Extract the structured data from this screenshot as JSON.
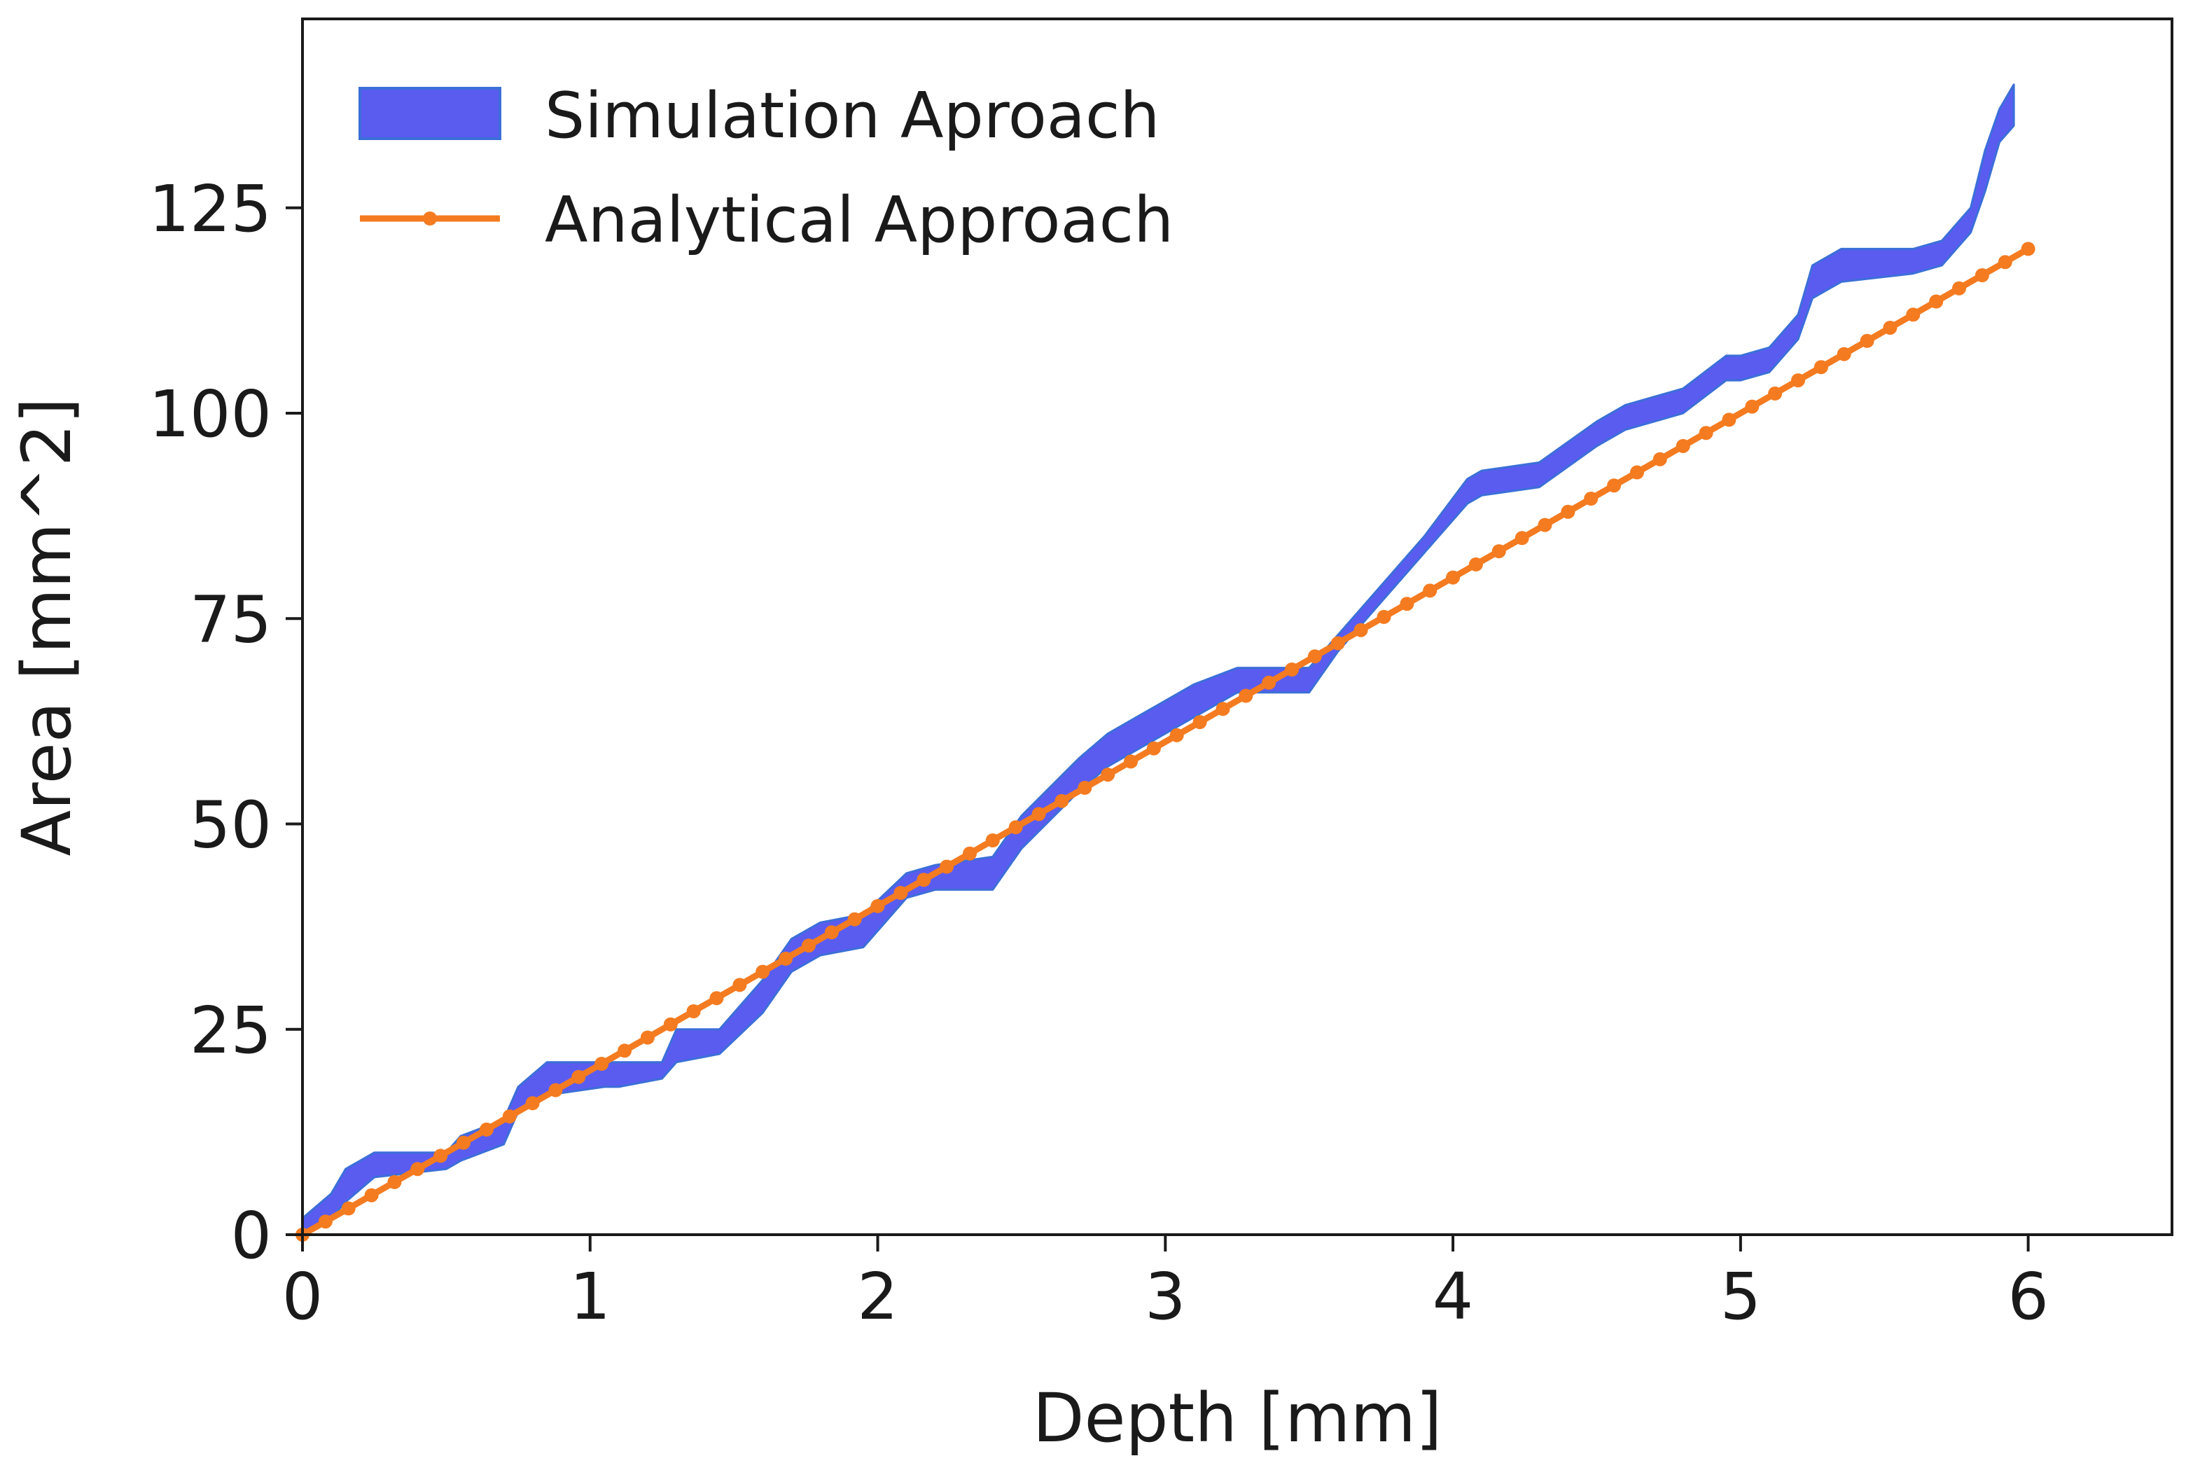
{
  "chart_data": {
    "type": "line",
    "title": "",
    "xlabel": "Depth [mm]",
    "ylabel": "Area [mm^2]",
    "xlim": [
      0,
      6.5
    ],
    "ylim": [
      0,
      148
    ],
    "xticks": [
      0,
      1,
      2,
      3,
      4,
      5,
      6
    ],
    "yticks": [
      0,
      25,
      50,
      75,
      100,
      125
    ],
    "grid": false,
    "legend_position": "top-left",
    "colors": {
      "simulation": "#5a5cf0",
      "simulation_edge": "#3b6fd8",
      "analytical": "#f47b20"
    },
    "legend": [
      {
        "label": "Simulation Aproach",
        "kind": "band"
      },
      {
        "label": "Analytical Approach",
        "kind": "line-marker"
      }
    ],
    "series": [
      {
        "name": "Simulation Aproach",
        "kind": "band",
        "x": [
          0,
          0.1,
          0.15,
          0.25,
          0.5,
          0.55,
          0.7,
          0.75,
          0.85,
          1.05,
          1.1,
          1.25,
          1.3,
          1.45,
          1.6,
          1.7,
          1.8,
          1.95,
          2.1,
          2.2,
          2.4,
          2.5,
          2.7,
          2.8,
          2.9,
          3.0,
          3.1,
          3.25,
          3.5,
          3.6,
          3.75,
          3.9,
          4.05,
          4.1,
          4.3,
          4.5,
          4.6,
          4.7,
          4.8,
          4.95,
          5.0,
          5.1,
          5.2,
          5.25,
          5.35,
          5.6,
          5.7,
          5.8,
          5.85,
          5.9,
          5.95
        ],
        "lower": [
          0,
          2,
          4,
          7,
          8,
          9,
          11,
          15,
          17,
          18,
          18,
          19,
          21,
          22,
          27,
          32,
          34,
          35,
          41,
          42,
          42,
          47,
          54,
          57,
          59,
          61,
          63,
          66,
          66,
          71,
          77,
          83,
          89,
          90,
          91,
          96,
          98,
          99,
          100,
          104,
          104,
          105,
          109,
          114,
          116,
          117,
          118,
          122,
          127,
          133,
          135
        ],
        "upper": [
          2,
          5,
          8,
          10,
          10,
          12,
          14,
          18,
          21,
          21,
          21,
          21,
          25,
          25,
          31,
          36,
          38,
          39,
          44,
          45,
          46,
          51,
          58,
          61,
          63,
          65,
          67,
          69,
          69,
          73,
          79,
          85,
          92,
          93,
          94,
          99,
          101,
          102,
          103,
          107,
          107,
          108,
          112,
          118,
          120,
          120,
          121,
          125,
          132,
          137,
          140
        ]
      },
      {
        "name": "Analytical Approach",
        "kind": "line-marker",
        "x": [
          0,
          0.5,
          1.0,
          1.5,
          2.0,
          2.5,
          3.0,
          3.5,
          4.0,
          4.5,
          5.0,
          5.5,
          6.0
        ],
        "y": [
          0,
          10,
          20,
          30,
          40,
          50,
          60,
          70,
          80,
          90,
          100,
          110,
          120
        ],
        "marker_step": 0.08
      }
    ]
  }
}
